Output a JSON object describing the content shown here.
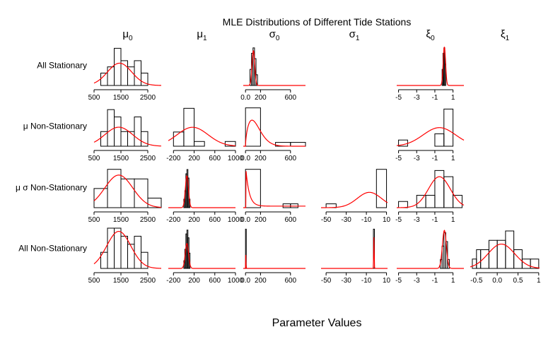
{
  "chart_data": {
    "type": "histogram",
    "title": "MLE Distributions of Different Tide Stations",
    "xlabel": "Parameter Values",
    "density_color": "#ff0000",
    "columns": [
      {
        "name": "mu0",
        "label_base": "μ",
        "label_sub": "0",
        "xlim": [
          500,
          3000
        ],
        "ticks": [
          500,
          1500,
          2500
        ]
      },
      {
        "name": "mu1",
        "label_base": "μ",
        "label_sub": "1",
        "xlim": [
          -300,
          1000
        ],
        "ticks": [
          -200,
          200,
          600,
          1000
        ]
      },
      {
        "name": "sigma0",
        "label_base": "σ",
        "label_sub": "0",
        "xlim": [
          -30,
          800
        ],
        "ticks": [
          0,
          200,
          600
        ]
      },
      {
        "name": "sigma1",
        "label_base": "σ",
        "label_sub": "1",
        "xlim": [
          -55,
          11
        ],
        "ticks": [
          -50,
          -30,
          -10,
          10
        ]
      },
      {
        "name": "xi0",
        "label_base": "ξ",
        "label_sub": "0",
        "xlim": [
          -5.2,
          2.2
        ],
        "ticks": [
          -5,
          -3,
          -1,
          1
        ]
      },
      {
        "name": "xi1",
        "label_base": "ξ",
        "label_sub": "1",
        "xlim": [
          -0.65,
          1.02
        ],
        "ticks": [
          -0.5,
          0,
          0.5,
          1
        ]
      }
    ],
    "rows": [
      {
        "label": "All Stationary",
        "panels": [
          {
            "col": 0,
            "bins": [
              [
                750,
                1000,
                2
              ],
              [
                1000,
                1250,
                3
              ],
              [
                1250,
                1500,
                6
              ],
              [
                1500,
                1750,
                4
              ],
              [
                1750,
                2000,
                3
              ],
              [
                2000,
                2250,
                4
              ],
              [
                2250,
                2500,
                2
              ]
            ],
            "ymax": 6.5,
            "curve": {
              "type": "normal",
              "mean": 1450,
              "sd": 450,
              "peak": 3.6
            },
            "ticks": [
              500,
              1500,
              2500
            ]
          },
          {
            "col": 2,
            "bins": [
              [
                60,
                80,
                3
              ],
              [
                80,
                100,
                6
              ],
              [
                100,
                120,
                7
              ],
              [
                120,
                140,
                5
              ],
              [
                140,
                160,
                2
              ]
            ],
            "ymax": 7.5,
            "curve": {
              "type": "normal",
              "mean": 105,
              "sd": 18,
              "peak": 6.5
            },
            "ticks": [
              0,
              200,
              600
            ]
          },
          {
            "col": 4,
            "bins": [
              [
                -0.2,
                -0.1,
                3
              ],
              [
                -0.1,
                0,
                6
              ],
              [
                0,
                0.1,
                7
              ],
              [
                0.1,
                0.2,
                4
              ]
            ],
            "ymax": 7.5,
            "curve": {
              "type": "normal",
              "mean": 0.05,
              "sd": 0.13,
              "peak": 7.2
            },
            "ticks": [
              -5,
              -3,
              -1,
              1
            ]
          }
        ]
      },
      {
        "label": "μ Non-Stationary",
        "panels": [
          {
            "col": 0,
            "bins": [
              [
                750,
                1000,
                2
              ],
              [
                1000,
                1250,
                5
              ],
              [
                1250,
                1500,
                4
              ],
              [
                1500,
                1750,
                2
              ],
              [
                1750,
                2000,
                2
              ],
              [
                2000,
                2250,
                4
              ],
              [
                2250,
                2500,
                2
              ]
            ],
            "ymax": 5.5,
            "curve": {
              "type": "normal",
              "mean": 1420,
              "sd": 520,
              "peak": 2.6
            },
            "ticks": [
              500,
              1500,
              2500
            ]
          },
          {
            "col": 1,
            "bins": [
              [
                -200,
                0,
                3
              ],
              [
                0,
                200,
                8
              ],
              [
                200,
                400,
                1
              ],
              [
                800,
                1000,
                1
              ]
            ],
            "ymax": 8.5,
            "curve": {
              "type": "normal",
              "mean": 170,
              "sd": 300,
              "peak": 4.0
            },
            "ticks": [
              -200,
              200,
              600,
              1000
            ]
          },
          {
            "col": 2,
            "bins": [
              [
                0,
                200,
                10
              ],
              [
                400,
                600,
                1
              ],
              [
                600,
                800,
                1
              ]
            ],
            "ymax": 10.5,
            "curve": {
              "type": "skew",
              "mode": 60,
              "scale": 160,
              "peak": 6.8
            },
            "ticks": [
              0,
              200,
              600
            ]
          },
          {
            "col": 4,
            "bins": [
              [
                -5,
                -4,
                1
              ],
              [
                -1,
                0,
                2
              ],
              [
                0,
                1,
                6
              ]
            ],
            "ymax": 6.5,
            "curve": {
              "type": "normal",
              "mean": -0.5,
              "sd": 1.8,
              "peak": 3.0
            },
            "ticks": [
              -5,
              -3,
              -1,
              1
            ]
          }
        ]
      },
      {
        "label": "μ σ Non-Stationary",
        "panels": [
          {
            "col": 0,
            "bins": [
              [
                500,
                1000,
                2
              ],
              [
                1000,
                1500,
                4
              ],
              [
                1500,
                2000,
                3
              ],
              [
                2000,
                2500,
                3
              ],
              [
                2500,
                3000,
                1
              ]
            ],
            "ymax": 4.2,
            "curve": {
              "type": "normal",
              "mean": 1420,
              "sd": 520,
              "peak": 3.4
            },
            "ticks": [
              500,
              1500,
              2500
            ]
          },
          {
            "col": 1,
            "bins": [
              [
                0,
                20,
                2
              ],
              [
                20,
                40,
                4
              ],
              [
                40,
                60,
                8
              ],
              [
                60,
                80,
                9
              ],
              [
                80,
                100,
                7
              ],
              [
                100,
                120,
                2
              ]
            ],
            "ymax": 9.5,
            "curve": {
              "type": "normal",
              "mean": 60,
              "sd": 30,
              "peak": 7.5
            },
            "ticks": [
              -200,
              200,
              600,
              1000
            ]
          },
          {
            "col": 2,
            "bins": [
              [
                0,
                200,
                10
              ],
              [
                500,
                600,
                1
              ],
              [
                600,
                700,
                1
              ]
            ],
            "ymax": 10.5,
            "curve": {
              "type": "decay",
              "start": 5,
              "scale": 45,
              "peak": 10.0,
              "floor": 0.4
            },
            "ticks": [
              0,
              200,
              600
            ]
          },
          {
            "col": 3,
            "bins": [
              [
                -50,
                -40,
                1
              ],
              [
                0,
                10,
                10
              ]
            ],
            "ymax": 10.5,
            "curve": {
              "type": "normal",
              "mean": -7,
              "sd": 12,
              "peak": 4.0
            },
            "ticks": [
              -50,
              -30,
              -10,
              10
            ]
          },
          {
            "col": 4,
            "bins": [
              [
                -5,
                -4,
                1
              ],
              [
                -3,
                -2,
                2
              ],
              [
                -2,
                -1,
                2
              ],
              [
                -1,
                0,
                6
              ],
              [
                0,
                1,
                5
              ],
              [
                1,
                2,
                2
              ]
            ],
            "ymax": 6.5,
            "curve": {
              "type": "normal",
              "mean": -0.5,
              "sd": 1.2,
              "peak": 5.0
            },
            "ticks": [
              -5,
              -3,
              -1,
              1
            ]
          }
        ]
      },
      {
        "label": "All Non-Stationary",
        "panels": [
          {
            "col": 0,
            "bins": [
              [
                750,
                1000,
                2
              ],
              [
                1000,
                1250,
                5
              ],
              [
                1250,
                1500,
                5
              ],
              [
                1500,
                1750,
                4
              ],
              [
                1750,
                2000,
                3
              ],
              [
                2000,
                2250,
                4
              ],
              [
                2250,
                2500,
                2
              ]
            ],
            "ymax": 5.0,
            "curve": {
              "type": "normal",
              "mean": 1420,
              "sd": 450,
              "peak": 4.6
            },
            "ticks": [
              500,
              1500,
              2500
            ]
          },
          {
            "col": 1,
            "bins": [
              [
                0,
                20,
                2
              ],
              [
                20,
                40,
                5
              ],
              [
                40,
                60,
                9
              ],
              [
                60,
                80,
                10
              ],
              [
                80,
                100,
                8
              ],
              [
                100,
                120,
                4
              ]
            ],
            "ymax": 10.5,
            "curve": {
              "type": "normal",
              "mean": 60,
              "sd": 32,
              "peak": 6.5
            },
            "ticks": [
              -200,
              200,
              600,
              1000
            ]
          },
          {
            "col": 2,
            "bins": [
              [
                0,
                10,
                20
              ]
            ],
            "ymax": 20.5,
            "curve": {
              "type": "decay",
              "start": 0,
              "scale": 3,
              "peak": 20,
              "floor": 0
            },
            "ticks": [
              0,
              200,
              600
            ]
          },
          {
            "col": 3,
            "bins": [
              [
                -3,
                -2,
                20
              ]
            ],
            "ymax": 20.5,
            "curve": {
              "type": "normal",
              "mean": -2.5,
              "sd": 0.25,
              "peak": 16
            },
            "ticks": [
              -50,
              -30,
              -10,
              10
            ]
          },
          {
            "col": 4,
            "bins": [
              [
                -0.4,
                -0.2,
                2
              ],
              [
                -0.2,
                0,
                5
              ],
              [
                0,
                0.2,
                8
              ],
              [
                0.2,
                0.4,
                6
              ],
              [
                0.4,
                0.6,
                2
              ]
            ],
            "ymax": 9.0,
            "curve": {
              "type": "normal",
              "mean": 0.05,
              "sd": 0.22,
              "peak": 8.5
            },
            "ticks": [
              -5,
              -3,
              -1,
              1
            ]
          },
          {
            "col": 5,
            "bins": [
              [
                -0.6,
                -0.5,
                1
              ],
              [
                -0.5,
                -0.4,
                2
              ],
              [
                -0.4,
                -0.2,
                2
              ],
              [
                -0.2,
                0,
                3
              ],
              [
                0,
                0.2,
                3
              ],
              [
                0.2,
                0.4,
                4
              ],
              [
                0.4,
                0.6,
                2
              ],
              [
                0.6,
                0.8,
                1
              ],
              [
                0.8,
                1.0,
                1
              ]
            ],
            "ymax": 4.3,
            "curve": {
              "type": "normal",
              "mean": 0.1,
              "sd": 0.32,
              "peak": 2.6
            },
            "ticks": [
              -0.5,
              0,
              0.5,
              1
            ]
          }
        ]
      }
    ]
  }
}
